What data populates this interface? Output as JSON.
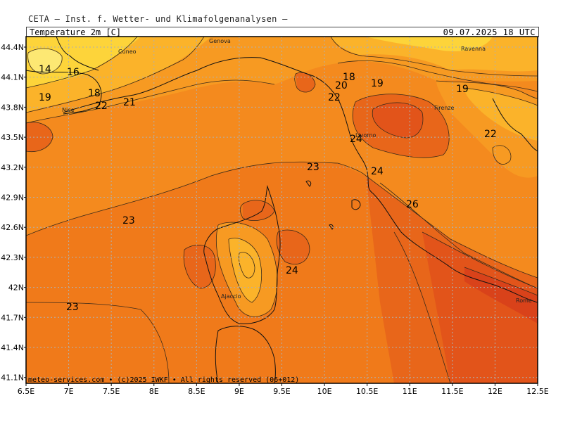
{
  "header": {
    "provider": "CETA — Inst. f. Wetter- und Klimafolgenanalysen —",
    "parameter": "Temperature_2m_[C]",
    "valid_time": "09.07.2025 18 UTC"
  },
  "footer": {
    "copyright": "meteo-services.com • (c)2025 IWKF • All rights reserved (06+012)"
  },
  "axes": {
    "lon_ticks": [
      "6.5E",
      "7E",
      "7.5E",
      "8E",
      "8.5E",
      "9E",
      "9.5E",
      "10E",
      "10.5E",
      "11E",
      "11.5E",
      "12E",
      "12.5E"
    ],
    "lat_ticks": [
      "44.4N",
      "44.1N",
      "43.8N",
      "43.5N",
      "43.2N",
      "42.9N",
      "42.6N",
      "42.3N",
      "42N",
      "41.7N",
      "41.4N",
      "41.1N"
    ]
  },
  "cities": [
    "Cuneo",
    "Genova",
    "Ravenna",
    "Nice",
    "Firenze",
    "Livorno",
    "Ajaccio",
    "Rome"
  ],
  "contour_labels": [
    "14",
    "16",
    "18",
    "19",
    "22",
    "21",
    "20",
    "18",
    "19",
    "22",
    "19",
    "22",
    "24",
    "23",
    "24",
    "26",
    "23",
    "24",
    "23"
  ],
  "colors": {
    "deep_orange": "#f07a1a",
    "orange": "#f79a22",
    "light_orange": "#fbb32a",
    "yellow": "#fdd43a",
    "red_orange": "#e2541a",
    "red": "#d9421a"
  }
}
